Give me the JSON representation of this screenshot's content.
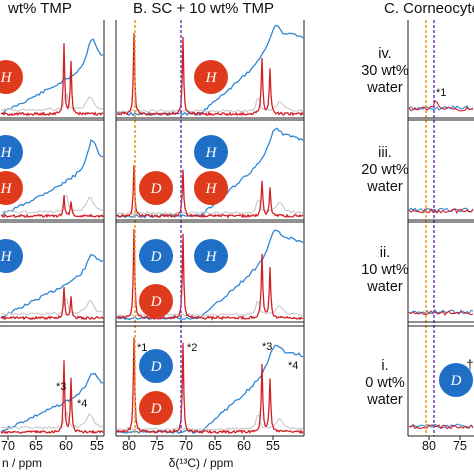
{
  "panels": {
    "a_title_fragment": "wt% TMP",
    "b_title": "B. SC + 10 wt% TMP",
    "c_title_fragment": "C. Corneocyte"
  },
  "axis": {
    "a_label_fragment": "n / ppm",
    "b_label": "δ(¹³C) / ppm",
    "a_ticks": [
      "70",
      "65",
      "60",
      "55"
    ],
    "b_ticks": [
      "80",
      "75",
      "70",
      "65",
      "60",
      "55"
    ],
    "c_ticks": [
      "80",
      "75"
    ]
  },
  "water_rows": [
    {
      "roman": "iv.",
      "pct": "30 wt%",
      "word": "water"
    },
    {
      "roman": "iii.",
      "pct": "20 wt%",
      "word": "water"
    },
    {
      "roman": "ii.",
      "pct": "10 wt%",
      "word": "water"
    },
    {
      "roman": "i.",
      "pct": "0 wt%",
      "word": "water"
    }
  ],
  "bubbles": {
    "h": "H",
    "d": "D",
    "dagger": "†"
  },
  "peak_labels": {
    "p1": "*1",
    "p2": "*2",
    "p3": "*3",
    "p4": "*4"
  },
  "colors": {
    "blue": "#2f86d3",
    "red": "#d21f26",
    "gray": "#c9c9c9",
    "orange_guide": "#f0a020",
    "purple_guide": "#7b4bb8",
    "bubble_blue": "#1f6fc6",
    "bubble_red": "#e03a1d"
  }
}
